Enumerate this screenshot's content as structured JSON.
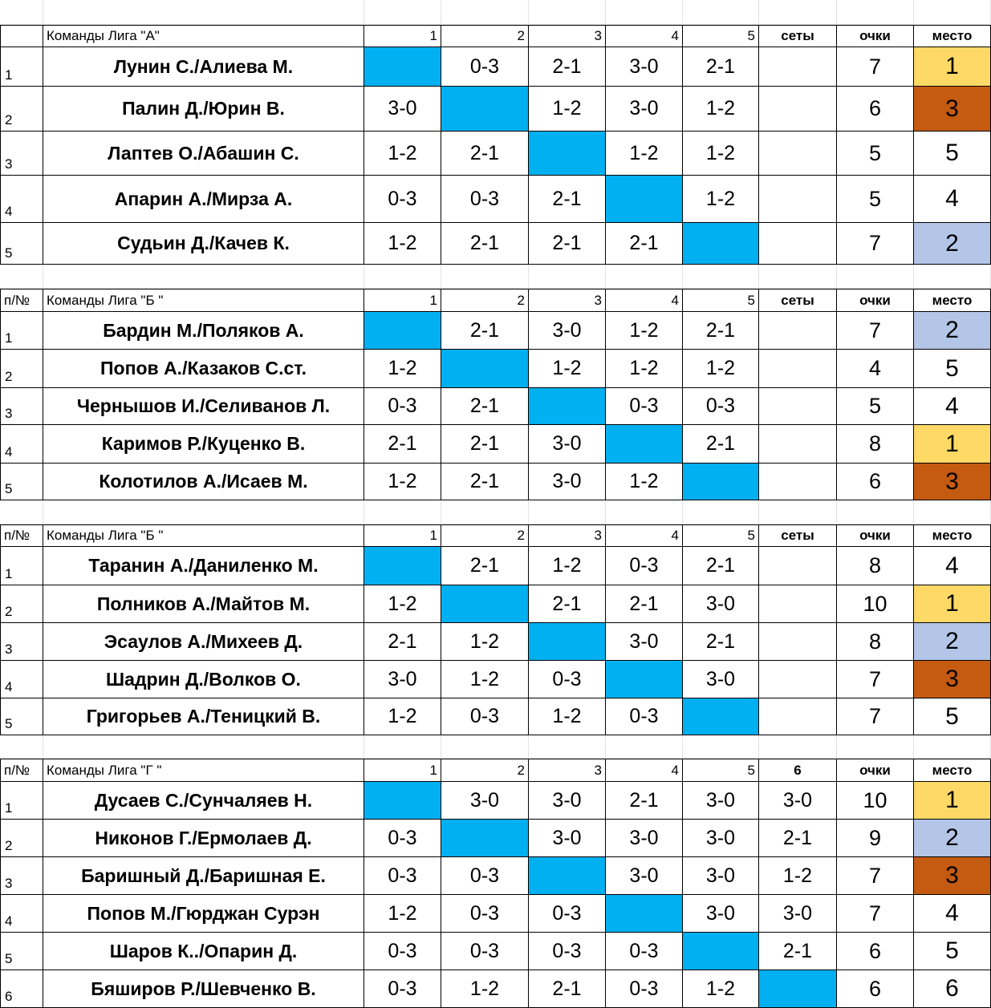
{
  "colors": {
    "diagonal": "#00b0f0",
    "first_place": "#ffd966",
    "second_place": "#b4c6e7",
    "third_place": "#c55a11"
  },
  "groups": [
    {
      "rownum_header": "",
      "title": "Команды Лига \"А\"",
      "headers": [
        "1",
        "2",
        "3",
        "4",
        "5",
        "сеты",
        "очки",
        "место"
      ],
      "rows": [
        {
          "n": "1",
          "team": "Лунин С./Алиева М.",
          "scores": [
            "",
            "0-3",
            "2-1",
            "3-0",
            "2-1",
            ""
          ],
          "points": "7",
          "place": "1"
        },
        {
          "n": "2",
          "team": "Палин Д./Юрин В.",
          "scores": [
            "3-0",
            "",
            "1-2",
            "3-0",
            "1-2",
            ""
          ],
          "points": "6",
          "place": "3"
        },
        {
          "n": "3",
          "team": "Лаптев О./Абашин С.",
          "scores": [
            "1-2",
            "2-1",
            "",
            "1-2",
            "1-2",
            ""
          ],
          "points": "5",
          "place": "5"
        },
        {
          "n": "4",
          "team": "Апарин А./Мирза А.",
          "scores": [
            "0-3",
            "0-3",
            "2-1",
            "",
            "1-2",
            ""
          ],
          "points": "5",
          "place": "4"
        },
        {
          "n": "5",
          "team": "Судьин Д./Качев К.",
          "scores": [
            "1-2",
            "2-1",
            "2-1",
            "2-1",
            "",
            ""
          ],
          "points": "7",
          "place": "2"
        }
      ]
    },
    {
      "rownum_header": "п/№",
      "title": "Команды Лига \"Б \"",
      "headers": [
        "1",
        "2",
        "3",
        "4",
        "5",
        "сеты",
        "очки",
        "место"
      ],
      "rows": [
        {
          "n": "1",
          "team": "Бардин М./Поляков А.",
          "scores": [
            "",
            "2-1",
            "3-0",
            "1-2",
            "2-1",
            ""
          ],
          "points": "7",
          "place": "2"
        },
        {
          "n": "2",
          "team": "Попов А./Казаков С.ст.",
          "scores": [
            "1-2",
            "",
            "1-2",
            "1-2",
            "1-2",
            ""
          ],
          "points": "4",
          "place": "5"
        },
        {
          "n": "3",
          "team": "Чернышов И./Селиванов Л.",
          "scores": [
            "0-3",
            "2-1",
            "",
            "0-3",
            "0-3",
            ""
          ],
          "points": "5",
          "place": "4"
        },
        {
          "n": "4",
          "team": "Каримов Р./Куценко В.",
          "scores": [
            "2-1",
            "2-1",
            "3-0",
            "",
            "2-1",
            ""
          ],
          "points": "8",
          "place": "1"
        },
        {
          "n": "5",
          "team": "Колотилов А./Исаев М.",
          "scores": [
            "1-2",
            "2-1",
            "3-0",
            "1-2",
            "",
            ""
          ],
          "points": "6",
          "place": "3"
        }
      ]
    },
    {
      "rownum_header": "п/№",
      "title": "Команды Лига \"Б \"",
      "headers": [
        "1",
        "2",
        "3",
        "4",
        "5",
        "сеты",
        "очки",
        "место"
      ],
      "rows": [
        {
          "n": "1",
          "team": "Таранин А./Даниленко М.",
          "scores": [
            "",
            "2-1",
            "1-2",
            "0-3",
            "2-1",
            ""
          ],
          "points": "8",
          "place": "4"
        },
        {
          "n": "2",
          "team": "Полников А./Майтов М.",
          "scores": [
            "1-2",
            "",
            "2-1",
            "2-1",
            "3-0",
            ""
          ],
          "points": "10",
          "place": "1"
        },
        {
          "n": "3",
          "team": "Эсаулов А./Михеев Д.",
          "scores": [
            "2-1",
            "1-2",
            "",
            "3-0",
            "2-1",
            ""
          ],
          "points": "8",
          "place": "2"
        },
        {
          "n": "4",
          "team": "Шадрин Д./Волков О.",
          "scores": [
            "3-0",
            "1-2",
            "0-3",
            "",
            "3-0",
            ""
          ],
          "points": "7",
          "place": "3"
        },
        {
          "n": "5",
          "team": "Григорьев А./Теницкий В.",
          "scores": [
            "1-2",
            "0-3",
            "1-2",
            "0-3",
            "",
            ""
          ],
          "points": "7",
          "place": "5"
        }
      ]
    },
    {
      "rownum_header": "п/№",
      "title": "Команды Лига \"Г \"",
      "headers": [
        "1",
        "2",
        "3",
        "4",
        "5",
        "6",
        "очки",
        "место"
      ],
      "rows": [
        {
          "n": "1",
          "team": "Дусаев С./Сунчаляев Н.",
          "scores": [
            "",
            "3-0",
            "3-0",
            "2-1",
            "3-0",
            "3-0"
          ],
          "points": "10",
          "place": "1"
        },
        {
          "n": "2",
          "team": "Никонов Г./Ермолаев Д.",
          "scores": [
            "0-3",
            "",
            "3-0",
            "3-0",
            "3-0",
            "2-1"
          ],
          "points": "9",
          "place": "2"
        },
        {
          "n": "3",
          "team": "Баришный Д./Баришная Е.",
          "scores": [
            "0-3",
            "0-3",
            "",
            "3-0",
            "3-0",
            "1-2"
          ],
          "points": "7",
          "place": "3"
        },
        {
          "n": "4",
          "team": "Попов М./Гюрджан Сурэн",
          "scores": [
            "1-2",
            "0-3",
            "0-3",
            "",
            "3-0",
            "3-0"
          ],
          "points": "7",
          "place": "4"
        },
        {
          "n": "5",
          "team": "Шаров К../Опарин Д.",
          "scores": [
            "0-3",
            "0-3",
            "0-3",
            "0-3",
            "",
            "2-1"
          ],
          "points": "6",
          "place": "5"
        },
        {
          "n": "6",
          "team": "Бяширов Р./Шевченко В.",
          "scores": [
            "0-3",
            "1-2",
            "2-1",
            "0-3",
            "1-2",
            ""
          ],
          "points": "6",
          "place": "6"
        }
      ]
    }
  ]
}
